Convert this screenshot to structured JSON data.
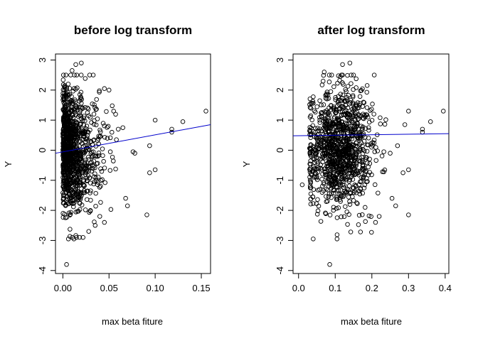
{
  "chart_data": [
    {
      "type": "scatter",
      "title": "before log transform",
      "xlabel": "max beta fiture",
      "ylabel": "Y",
      "xlim": [
        -0.008,
        0.16
      ],
      "ylim": [
        -4.1,
        3.2
      ],
      "xticks": [
        0.0,
        0.05,
        0.1,
        0.15
      ],
      "xtick_labels": [
        "0.00",
        "0.05",
        "0.10",
        "0.15"
      ],
      "yticks": [
        -4,
        -3,
        -2,
        -1,
        0,
        1,
        2,
        3
      ],
      "ytick_labels": [
        "-4",
        "-3",
        "-2",
        "-1",
        "0",
        "1",
        "2",
        "3"
      ],
      "grid": false,
      "fit_line": {
        "color": "#0000cc",
        "x": [
          -0.008,
          0.16
        ],
        "y": [
          -0.1,
          0.85
        ]
      },
      "cloud": {
        "n": 1100,
        "x_decay": 0.013,
        "x_min": 0.0,
        "x_max": 0.06,
        "y_mean": 0.0,
        "y_sd": 1.0,
        "seed": 7
      },
      "points": [
        [
          0.155,
          1.3
        ],
        [
          0.13,
          0.95
        ],
        [
          0.118,
          0.7
        ],
        [
          0.118,
          0.6
        ],
        [
          0.1,
          1.0
        ],
        [
          0.094,
          0.15
        ],
        [
          0.1,
          -0.65
        ],
        [
          0.094,
          -0.75
        ],
        [
          0.091,
          -2.15
        ],
        [
          0.078,
          -0.1
        ],
        [
          0.076,
          -0.05
        ],
        [
          0.068,
          -1.6
        ],
        [
          0.07,
          -1.85
        ],
        [
          0.065,
          0.75
        ],
        [
          0.06,
          0.7
        ],
        [
          0.058,
          0.35
        ],
        [
          0.055,
          1.3
        ],
        [
          0.05,
          2.0
        ],
        [
          0.045,
          2.05
        ],
        [
          0.04,
          -2.2
        ],
        [
          0.045,
          -2.4
        ],
        [
          0.035,
          -2.5
        ],
        [
          0.028,
          -2.7
        ],
        [
          0.02,
          2.9
        ],
        [
          0.014,
          2.85
        ],
        [
          0.01,
          2.65
        ],
        [
          0.004,
          -3.8
        ],
        [
          0.006,
          -2.95
        ],
        [
          0.012,
          -2.95
        ]
      ]
    },
    {
      "type": "scatter",
      "title": "after log transform",
      "xlabel": "max beta fiture",
      "ylabel": "Y",
      "xlim": [
        -0.015,
        0.41
      ],
      "ylim": [
        -4.1,
        3.2
      ],
      "xticks": [
        0.0,
        0.1,
        0.2,
        0.3,
        0.4
      ],
      "xtick_labels": [
        "0.0",
        "0.1",
        "0.2",
        "0.3",
        "0.4"
      ],
      "yticks": [
        -4,
        -3,
        -2,
        -1,
        0,
        1,
        2,
        3
      ],
      "ytick_labels": [
        "-4",
        "-3",
        "-2",
        "-1",
        "0",
        "1",
        "2",
        "3"
      ],
      "grid": false,
      "fit_line": {
        "color": "#0000cc",
        "x": [
          -0.015,
          0.41
        ],
        "y": [
          0.48,
          0.55
        ]
      },
      "cloud": {
        "n": 1100,
        "x_mean": 0.11,
        "x_sd": 0.045,
        "x_min": 0.03,
        "x_max": 0.24,
        "y_mean": 0.1,
        "y_sd": 1.0,
        "seed": 11
      },
      "points": [
        [
          0.395,
          1.3
        ],
        [
          0.36,
          0.95
        ],
        [
          0.338,
          0.7
        ],
        [
          0.338,
          0.6
        ],
        [
          0.3,
          1.3
        ],
        [
          0.29,
          0.85
        ],
        [
          0.27,
          0.15
        ],
        [
          0.3,
          -0.65
        ],
        [
          0.285,
          -0.75
        ],
        [
          0.3,
          -2.15
        ],
        [
          0.255,
          -1.6
        ],
        [
          0.265,
          -1.85
        ],
        [
          0.25,
          -0.1
        ],
        [
          0.01,
          -1.15
        ],
        [
          0.04,
          -2.95
        ],
        [
          0.085,
          -3.8
        ],
        [
          0.105,
          -2.95
        ],
        [
          0.07,
          2.6
        ],
        [
          0.12,
          2.85
        ],
        [
          0.14,
          2.9
        ],
        [
          0.15,
          2.5
        ],
        [
          0.21,
          -2.4
        ],
        [
          0.22,
          -2.2
        ]
      ]
    }
  ]
}
